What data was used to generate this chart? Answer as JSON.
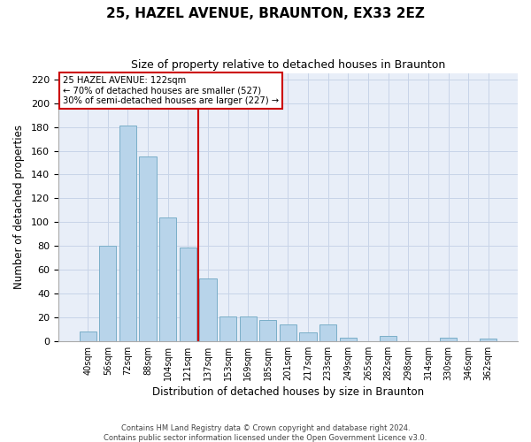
{
  "title": "25, HAZEL AVENUE, BRAUNTON, EX33 2EZ",
  "subtitle": "Size of property relative to detached houses in Braunton",
  "xlabel": "Distribution of detached houses by size in Braunton",
  "ylabel": "Number of detached properties",
  "footer_line1": "Contains HM Land Registry data © Crown copyright and database right 2024.",
  "footer_line2": "Contains public sector information licensed under the Open Government Licence v3.0.",
  "categories": [
    "40sqm",
    "56sqm",
    "72sqm",
    "88sqm",
    "104sqm",
    "121sqm",
    "137sqm",
    "153sqm",
    "169sqm",
    "185sqm",
    "201sqm",
    "217sqm",
    "233sqm",
    "249sqm",
    "265sqm",
    "282sqm",
    "298sqm",
    "314sqm",
    "330sqm",
    "346sqm",
    "362sqm"
  ],
  "values": [
    8,
    80,
    181,
    155,
    104,
    79,
    53,
    21,
    21,
    18,
    14,
    7,
    14,
    3,
    0,
    4,
    0,
    0,
    3,
    0,
    2
  ],
  "bar_color": "#b8d4ea",
  "bar_edge_color": "#7aaec8",
  "vline_x_index": 5,
  "vline_color": "#cc0000",
  "annotation_title": "25 HAZEL AVENUE: 122sqm",
  "annotation_line1": "← 70% of detached houses are smaller (527)",
  "annotation_line2": "30% of semi-detached houses are larger (227) →",
  "annotation_box_color": "#ffffff",
  "annotation_box_edge_color": "#cc0000",
  "ylim": [
    0,
    225
  ],
  "yticks": [
    0,
    20,
    40,
    60,
    80,
    100,
    120,
    140,
    160,
    180,
    200,
    220
  ],
  "bg_color": "#e8eef8"
}
